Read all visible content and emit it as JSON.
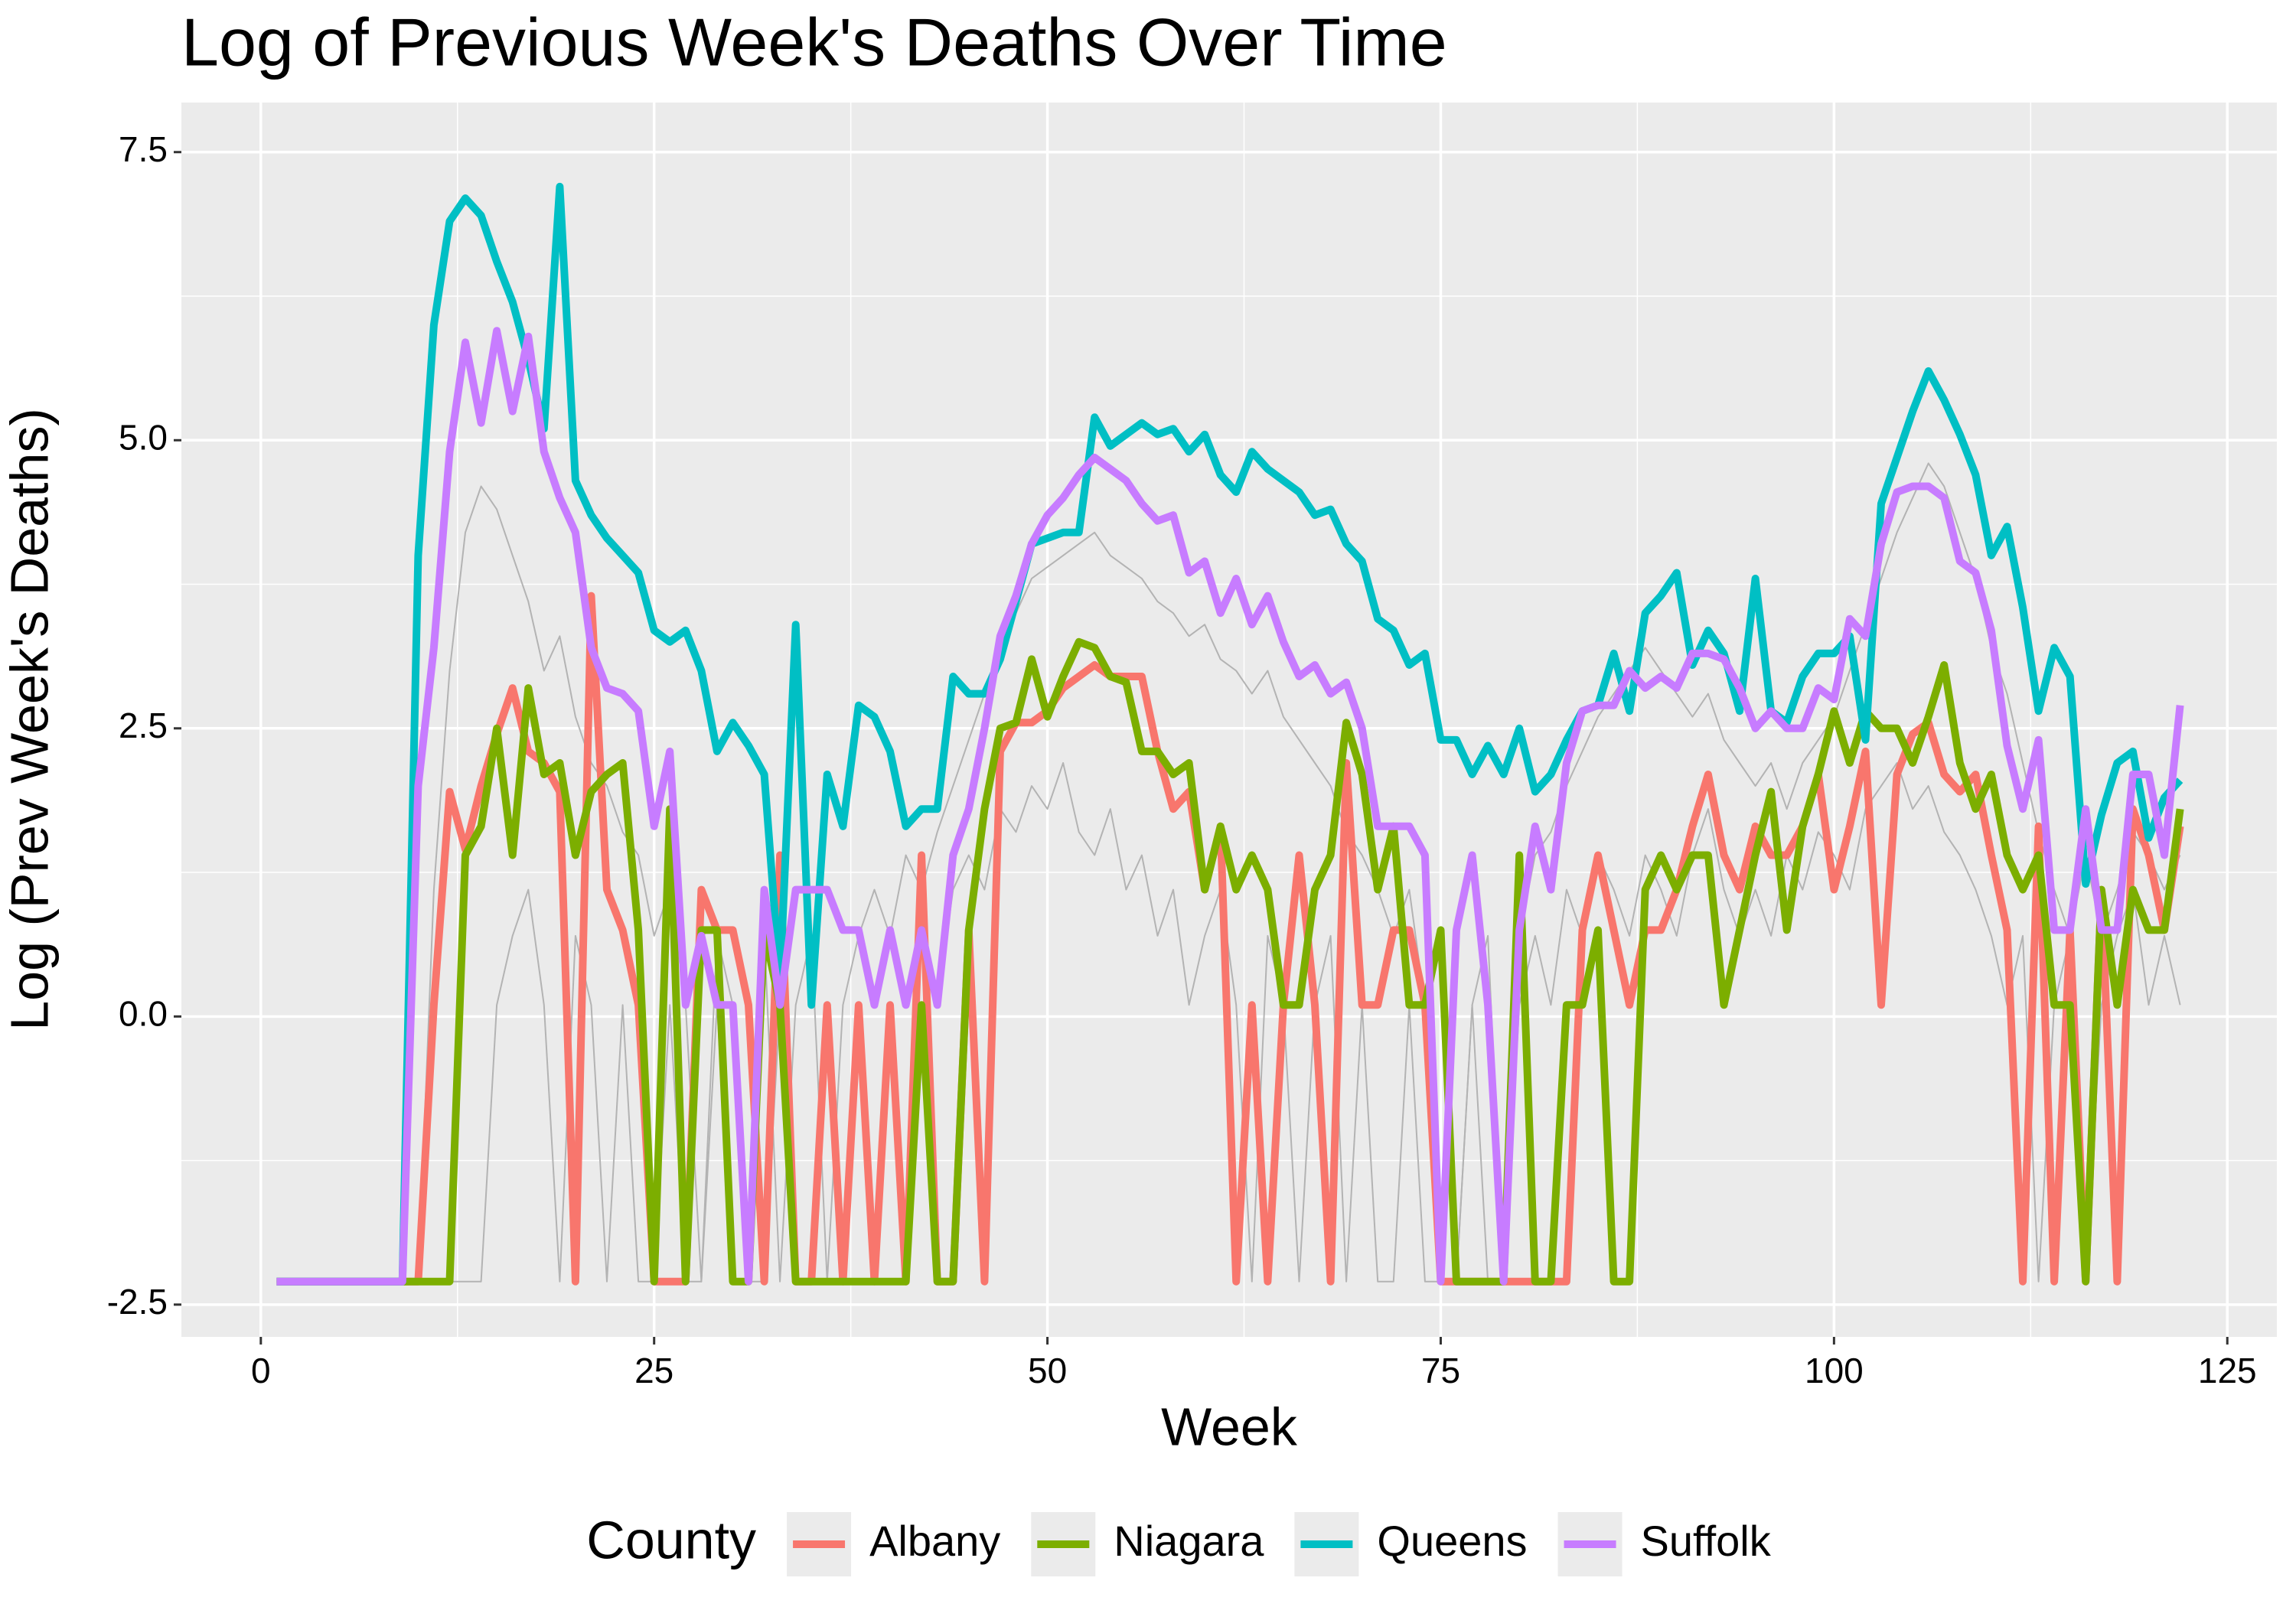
{
  "chart_data": {
    "type": "line",
    "title": "Log of Previous Week's Deaths Over Time",
    "x_label": "Week",
    "y_label": "Log (Prev Week's Deaths)",
    "legend_title": "County",
    "legend_position": "bottom",
    "grid": true,
    "xlim": [
      -5.05,
      128.15
    ],
    "ylim": [
      -2.78,
      7.93
    ],
    "xticks": [
      0,
      25,
      50,
      75,
      100,
      125
    ],
    "yticks": [
      {
        "value": -2.5,
        "label": "-2.5"
      },
      {
        "value": 0,
        "label": "0.0"
      },
      2.5,
      {
        "value": 5,
        "label": "5.0"
      },
      7.5
    ],
    "xminor": [
      12.5,
      37.5,
      62.5,
      87.5,
      112.5
    ],
    "yminor": [
      -1.25,
      1.25,
      3.75,
      6.25
    ],
    "x": [
      1,
      2,
      3,
      4,
      5,
      6,
      7,
      8,
      9,
      10,
      11,
      12,
      13,
      14,
      15,
      16,
      17,
      18,
      19,
      20,
      21,
      22,
      23,
      24,
      25,
      26,
      27,
      28,
      29,
      30,
      31,
      32,
      33,
      34,
      35,
      36,
      37,
      38,
      39,
      40,
      41,
      42,
      43,
      44,
      45,
      46,
      47,
      48,
      49,
      50,
      51,
      52,
      53,
      54,
      55,
      56,
      57,
      58,
      59,
      60,
      61,
      62,
      63,
      64,
      65,
      66,
      67,
      68,
      69,
      70,
      71,
      72,
      73,
      74,
      75,
      76,
      77,
      78,
      79,
      80,
      81,
      82,
      83,
      84,
      85,
      86,
      87,
      88,
      89,
      90,
      91,
      92,
      93,
      94,
      95,
      96,
      97,
      98,
      99,
      100,
      101,
      102,
      103,
      104,
      105,
      106,
      107,
      108,
      109,
      110,
      111,
      112,
      113,
      114,
      115,
      116,
      117,
      118,
      119,
      120,
      121,
      122
    ],
    "background_series": [
      {
        "color": "#b3b3b3",
        "values": [
          -2.3,
          -2.3,
          -2.3,
          -2.3,
          -2.3,
          -2.3,
          -2.3,
          -2.3,
          -2.3,
          -2.3,
          1.1,
          3.0,
          4.2,
          4.6,
          4.4,
          4.0,
          3.6,
          3.0,
          3.3,
          2.6,
          2.2,
          2.0,
          1.6,
          1.4,
          0.7,
          1.1,
          0.1,
          -2.3,
          0.7,
          0.1,
          -2.3,
          0.7,
          -2.3,
          0.1,
          0.7,
          -2.3,
          0.1,
          0.7,
          1.1,
          0.7,
          1.4,
          1.1,
          1.6,
          2.0,
          2.4,
          2.8,
          3.2,
          3.5,
          3.8,
          3.9,
          4.0,
          4.1,
          4.2,
          4.0,
          3.9,
          3.8,
          3.6,
          3.5,
          3.3,
          3.4,
          3.1,
          3.0,
          2.8,
          3.0,
          2.6,
          2.4,
          2.2,
          2.0,
          1.6,
          1.4,
          1.1,
          0.7,
          1.1,
          0.1,
          0.7,
          -2.3,
          0.1,
          0.7,
          -2.3,
          0.7,
          1.4,
          1.6,
          2.0,
          2.3,
          2.6,
          2.8,
          3.0,
          3.2,
          3.0,
          2.8,
          2.6,
          2.8,
          2.4,
          2.2,
          2.0,
          2.2,
          1.8,
          2.2,
          2.4,
          2.6,
          3.0,
          3.4,
          3.8,
          4.2,
          4.5,
          4.8,
          4.6,
          4.2,
          3.8,
          3.2,
          2.8,
          2.2,
          1.6,
          1.1,
          0.7,
          1.4,
          0.7,
          1.1,
          1.6,
          1.4,
          1.1,
          1.4
        ]
      },
      {
        "color": "#b3b3b3",
        "values": [
          -2.3,
          -2.3,
          -2.3,
          -2.3,
          -2.3,
          -2.3,
          -2.3,
          -2.3,
          -2.3,
          -2.3,
          -2.3,
          -2.3,
          -2.3,
          -2.3,
          0.1,
          0.7,
          1.1,
          0.1,
          -2.3,
          0.7,
          0.1,
          -2.3,
          0.1,
          -2.3,
          -2.3,
          0.1,
          -2.3,
          -2.3,
          0.1,
          -2.3,
          -2.3,
          -2.3,
          0.1,
          -2.3,
          -2.3,
          0.1,
          -2.3,
          -2.3,
          -2.3,
          0.1,
          -2.3,
          0.7,
          0.1,
          1.1,
          1.4,
          1.1,
          1.8,
          1.6,
          2.0,
          1.8,
          2.2,
          1.6,
          1.4,
          1.8,
          1.1,
          1.4,
          0.7,
          1.1,
          0.1,
          0.7,
          1.1,
          0.1,
          -2.3,
          0.7,
          0.1,
          -2.3,
          0.1,
          0.7,
          -2.3,
          0.1,
          -2.3,
          -2.3,
          0.1,
          -2.3,
          -2.3,
          -2.3,
          0.1,
          -2.3,
          -2.3,
          0.1,
          0.7,
          0.1,
          1.1,
          0.7,
          1.4,
          1.1,
          0.7,
          1.4,
          1.1,
          0.7,
          1.4,
          1.8,
          1.1,
          0.7,
          1.1,
          0.7,
          1.4,
          1.1,
          1.6,
          1.4,
          1.1,
          1.8,
          2.0,
          2.2,
          1.8,
          2.0,
          1.6,
          1.4,
          1.1,
          0.7,
          0.1,
          0.7,
          -2.3,
          0.1,
          0.7,
          -2.3,
          0.1,
          0.7,
          1.1,
          0.1,
          0.7,
          0.1
        ]
      }
    ],
    "series": [
      {
        "name": "Albany",
        "color": "#f8766d",
        "values": [
          -2.3,
          -2.3,
          -2.3,
          -2.3,
          -2.3,
          -2.3,
          -2.3,
          -2.3,
          -2.3,
          -2.3,
          0.1,
          1.95,
          1.45,
          2.0,
          2.45,
          2.85,
          2.3,
          2.2,
          1.95,
          -2.3,
          3.65,
          1.1,
          0.75,
          0.1,
          -2.3,
          -2.3,
          -2.3,
          1.1,
          0.75,
          0.75,
          0.1,
          -2.3,
          1.4,
          -2.3,
          -2.3,
          0.1,
          -2.3,
          0.1,
          -2.3,
          0.1,
          -2.3,
          1.4,
          -2.3,
          -2.3,
          0.75,
          -2.3,
          2.3,
          2.55,
          2.55,
          2.65,
          2.85,
          2.95,
          3.05,
          2.95,
          2.95,
          2.95,
          2.3,
          1.8,
          1.95,
          1.1,
          1.65,
          -2.3,
          0.1,
          -2.3,
          0.1,
          1.4,
          0.1,
          -2.3,
          2.2,
          0.1,
          0.1,
          0.75,
          0.75,
          0.1,
          -2.3,
          -2.3,
          -2.3,
          -2.3,
          -2.3,
          -2.3,
          -2.3,
          -2.3,
          -2.3,
          0.75,
          1.4,
          0.75,
          0.1,
          0.75,
          0.75,
          1.1,
          1.65,
          2.1,
          1.4,
          1.1,
          1.65,
          1.4,
          1.4,
          1.65,
          2.1,
          1.1,
          1.65,
          2.3,
          0.1,
          2.1,
          2.45,
          2.55,
          2.1,
          1.95,
          2.1,
          1.4,
          0.75,
          -2.3,
          1.65,
          -2.3,
          0.75,
          -2.3,
          1.1,
          -2.3,
          1.8,
          1.4,
          0.75,
          1.65
        ]
      },
      {
        "name": "Niagara",
        "color": "#7cae00",
        "values": [
          -2.3,
          -2.3,
          -2.3,
          -2.3,
          -2.3,
          -2.3,
          -2.3,
          -2.3,
          -2.3,
          -2.3,
          -2.3,
          -2.3,
          1.4,
          1.65,
          2.5,
          1.4,
          2.85,
          2.1,
          2.2,
          1.4,
          1.95,
          2.1,
          2.2,
          0.75,
          -2.3,
          1.8,
          -2.3,
          0.75,
          0.75,
          -2.3,
          -2.3,
          0.75,
          0.1,
          -2.3,
          -2.3,
          -2.3,
          -2.3,
          -2.3,
          -2.3,
          -2.3,
          -2.3,
          0.1,
          -2.3,
          -2.3,
          0.75,
          1.8,
          2.5,
          2.55,
          3.1,
          2.6,
          2.95,
          3.25,
          3.2,
          2.95,
          2.9,
          2.3,
          2.3,
          2.1,
          2.2,
          1.1,
          1.65,
          1.1,
          1.4,
          1.1,
          0.1,
          0.1,
          1.1,
          1.4,
          2.55,
          2.1,
          1.1,
          1.65,
          0.1,
          0.1,
          0.75,
          -2.3,
          -2.3,
          -2.3,
          -2.3,
          1.4,
          -2.3,
          -2.3,
          0.1,
          0.1,
          0.75,
          -2.3,
          -2.3,
          1.1,
          1.4,
          1.1,
          1.4,
          1.4,
          0.1,
          0.75,
          1.4,
          1.95,
          0.75,
          1.65,
          2.1,
          2.65,
          2.2,
          2.65,
          2.5,
          2.5,
          2.2,
          2.6,
          3.05,
          2.2,
          1.8,
          2.1,
          1.4,
          1.1,
          1.4,
          0.1,
          0.1,
          -2.3,
          1.1,
          0.1,
          1.1,
          0.75,
          0.75,
          1.8
        ]
      },
      {
        "name": "Queens",
        "color": "#00bfc4",
        "values": [
          -2.3,
          -2.3,
          -2.3,
          -2.3,
          -2.3,
          -2.3,
          -2.3,
          -2.3,
          -2.3,
          4.0,
          6.0,
          6.9,
          7.1,
          6.95,
          6.55,
          6.2,
          5.7,
          5.1,
          7.2,
          4.65,
          4.35,
          4.15,
          4.0,
          3.85,
          3.35,
          3.25,
          3.35,
          3.0,
          2.3,
          2.55,
          2.35,
          2.1,
          0.3,
          3.4,
          0.1,
          2.1,
          1.65,
          2.7,
          2.6,
          2.3,
          1.65,
          1.8,
          1.8,
          2.95,
          2.8,
          2.8,
          3.1,
          3.6,
          4.1,
          4.15,
          4.2,
          4.2,
          5.2,
          4.95,
          5.05,
          5.15,
          5.05,
          5.1,
          4.9,
          5.05,
          4.7,
          4.55,
          4.9,
          4.75,
          4.65,
          4.55,
          4.35,
          4.4,
          4.1,
          3.95,
          3.45,
          3.35,
          3.05,
          3.15,
          2.4,
          2.4,
          2.1,
          2.35,
          2.1,
          2.5,
          1.95,
          2.1,
          2.4,
          2.65,
          2.7,
          3.15,
          2.65,
          3.5,
          3.65,
          3.85,
          3.05,
          3.35,
          3.15,
          2.65,
          3.8,
          2.65,
          2.55,
          2.95,
          3.15,
          3.15,
          3.3,
          2.4,
          4.45,
          4.85,
          5.25,
          5.6,
          5.35,
          5.05,
          4.7,
          4.0,
          4.25,
          3.55,
          2.65,
          3.2,
          2.95,
          1.15,
          1.75,
          2.2,
          2.3,
          1.55,
          1.9,
          2.05
        ]
      },
      {
        "name": "Suffolk",
        "color": "#c77cff",
        "values": [
          -2.3,
          -2.3,
          -2.3,
          -2.3,
          -2.3,
          -2.3,
          -2.3,
          -2.3,
          -2.3,
          2.0,
          3.2,
          4.9,
          5.85,
          5.15,
          5.95,
          5.25,
          5.9,
          4.9,
          4.5,
          4.2,
          3.2,
          2.85,
          2.8,
          2.65,
          1.65,
          2.3,
          0.1,
          0.7,
          0.1,
          0.1,
          -2.3,
          1.1,
          0.1,
          1.1,
          1.1,
          1.1,
          0.75,
          0.75,
          0.1,
          0.75,
          0.1,
          0.75,
          0.1,
          1.4,
          1.8,
          2.5,
          3.3,
          3.65,
          4.1,
          4.35,
          4.5,
          4.7,
          4.85,
          4.75,
          4.65,
          4.45,
          4.3,
          4.35,
          3.85,
          3.95,
          3.5,
          3.8,
          3.4,
          3.65,
          3.25,
          2.95,
          3.05,
          2.8,
          2.9,
          2.5,
          1.65,
          1.65,
          1.65,
          1.4,
          -2.3,
          0.75,
          1.4,
          0.1,
          -2.3,
          0.75,
          1.65,
          1.1,
          2.2,
          2.65,
          2.7,
          2.7,
          3.0,
          2.85,
          2.95,
          2.85,
          3.15,
          3.15,
          3.1,
          2.85,
          2.5,
          2.65,
          2.5,
          2.5,
          2.85,
          2.75,
          3.45,
          3.3,
          4.1,
          4.55,
          4.6,
          4.6,
          4.5,
          3.95,
          3.85,
          3.35,
          2.35,
          1.8,
          2.4,
          0.75,
          0.75,
          1.8,
          0.75,
          0.75,
          2.1,
          2.1,
          1.4,
          2.7
        ]
      }
    ]
  }
}
